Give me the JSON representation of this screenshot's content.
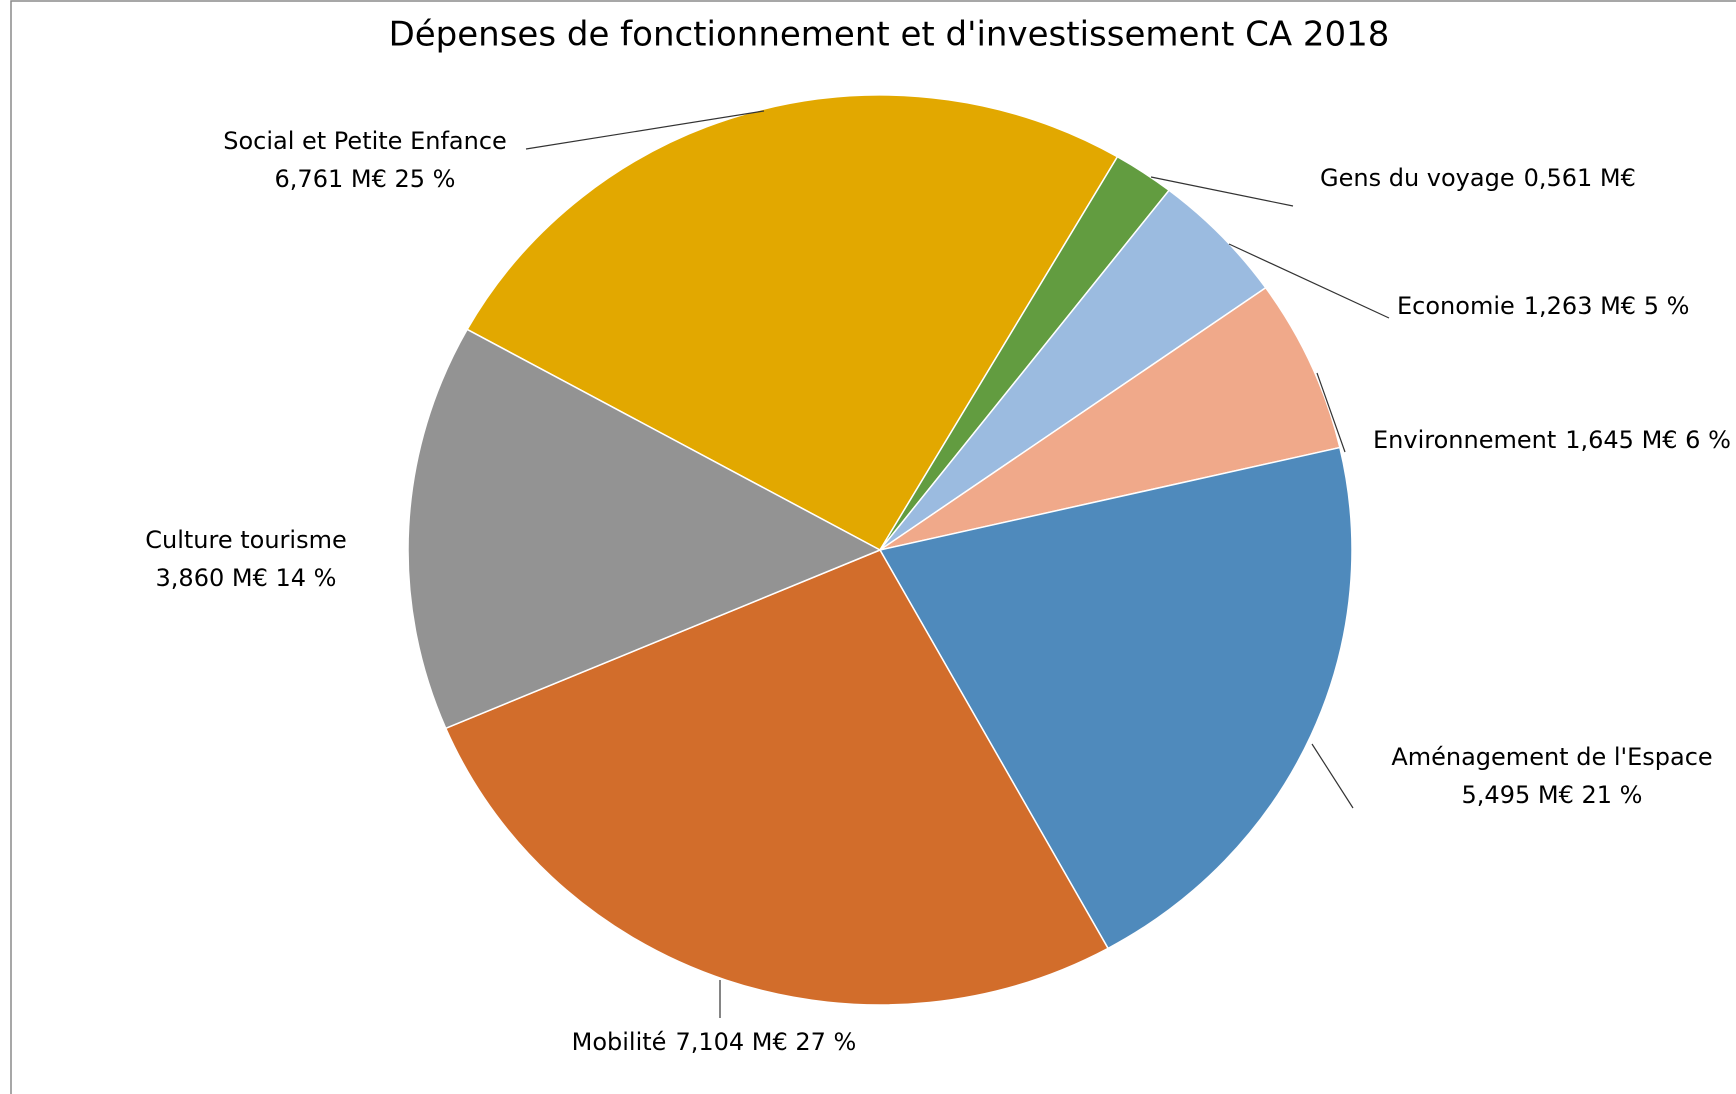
{
  "chart_data": {
    "type": "pie",
    "title": "Dépenses de fonctionnement et d'investissement CA 2018",
    "categories": [
      "Social et Petite Enfance",
      "Gens du voyage",
      "Economie",
      "Environnement",
      "Aménagement de l'Espace",
      "Mobilité",
      "Culture tourisme"
    ],
    "values": [
      6.761,
      0.561,
      1.263,
      1.645,
      5.495,
      7.104,
      3.86
    ],
    "value_labels": [
      "6,761 M€ 25 %",
      "0,561 M€",
      "1,263 M€ 5 %",
      "1,645 M€ 6 %",
      "5,495 M€ 21 %",
      "7,104 M€ 27 %",
      "3,860 M€ 14 %"
    ],
    "colors": [
      "#e2a800",
      "#629c40",
      "#9bbbe0",
      "#f0a98a",
      "#4f8abc",
      "#d26d2b",
      "#939393"
    ]
  }
}
